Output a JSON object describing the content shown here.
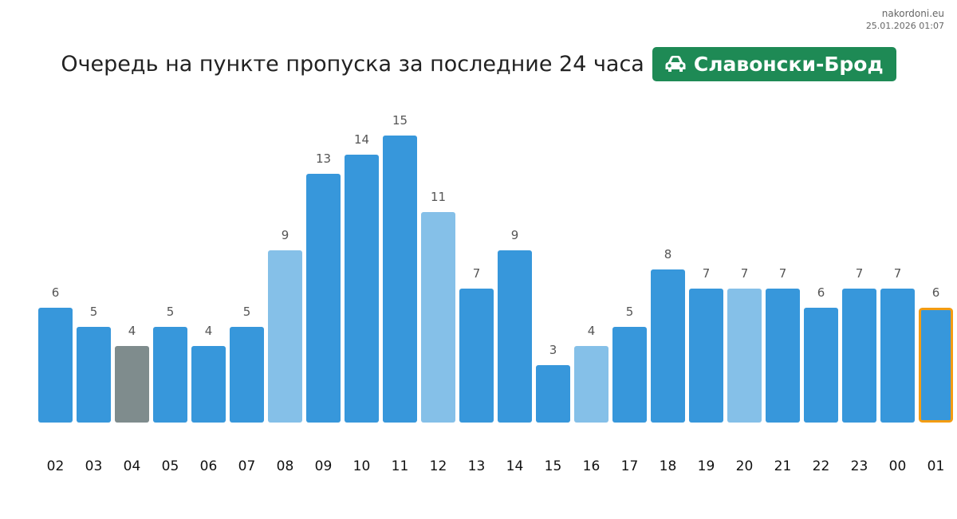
{
  "site": {
    "domain": "nakordoni.eu",
    "timestamp": "25.01.2026 01:07"
  },
  "header": {
    "title": "Очередь на пункте пропуска за последние 24 часа",
    "badge_label": "Славонски-Брод",
    "badge_icon": "car-icon",
    "badge_color": "#1e8a55"
  },
  "colors": {
    "bar_default": "#3797db",
    "bar_light": "#85c0e8",
    "bar_gray": "#7f8c8d",
    "current_border": "#f39c12"
  },
  "chart_data": {
    "type": "bar",
    "title": "Очередь на пункте пропуска за последние 24 часа",
    "xlabel": "",
    "ylabel": "",
    "grid": false,
    "ylim": [
      0,
      15
    ],
    "categories": [
      "02",
      "03",
      "04",
      "05",
      "06",
      "07",
      "08",
      "09",
      "10",
      "11",
      "12",
      "13",
      "14",
      "15",
      "16",
      "17",
      "18",
      "19",
      "20",
      "21",
      "22",
      "23",
      "00",
      "01"
    ],
    "values": [
      6,
      5,
      4,
      5,
      4,
      5,
      9,
      13,
      14,
      15,
      11,
      7,
      9,
      3,
      4,
      5,
      8,
      7,
      7,
      7,
      6,
      7,
      7,
      6
    ],
    "bar_styles": [
      "default",
      "default",
      "gray",
      "default",
      "default",
      "default",
      "light",
      "default",
      "default",
      "default",
      "light",
      "default",
      "default",
      "default",
      "light",
      "default",
      "default",
      "default",
      "light",
      "default",
      "default",
      "default",
      "default",
      "current"
    ]
  }
}
